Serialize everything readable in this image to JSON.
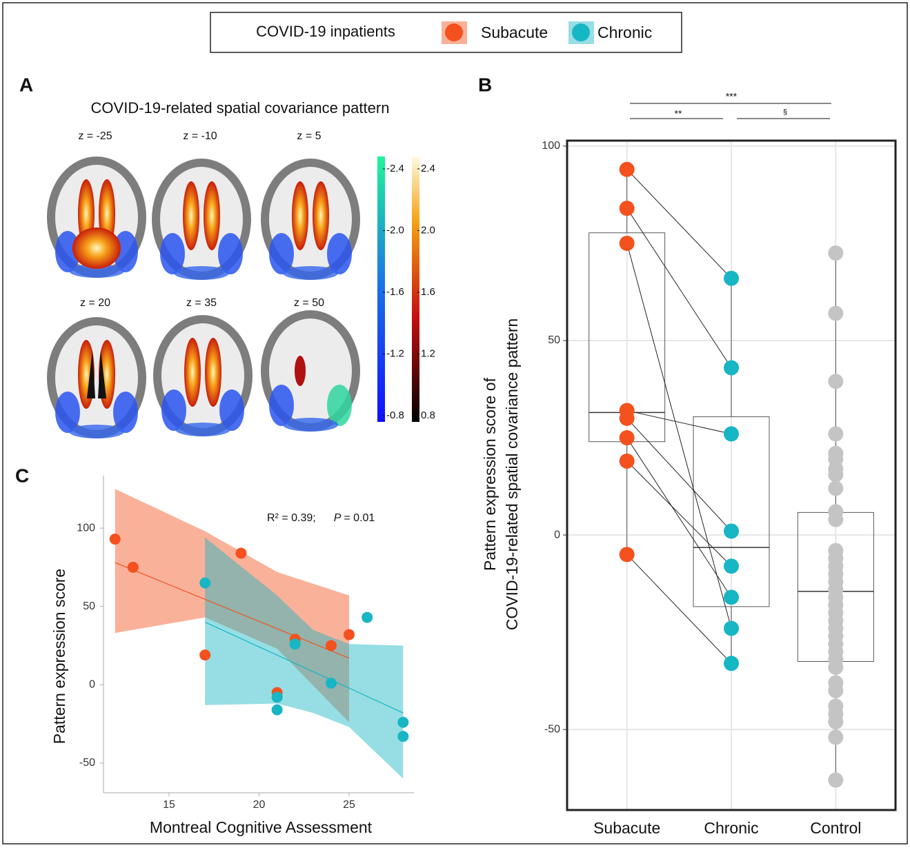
{
  "legend": {
    "title": "COVID-19 inpatients",
    "entries": [
      {
        "name": "Subacute",
        "color": "#f4511e"
      },
      {
        "name": "Chronic",
        "color": "#17b6c4"
      }
    ]
  },
  "panel_a": {
    "label": "A",
    "title": "COVID-19-related spatial covariance pattern",
    "slices": [
      "z = -25",
      "z = -10",
      "z = 5",
      "z = 20",
      "z = 35",
      "z = 50"
    ],
    "colorbar_negative": {
      "lim": [
        -0.76,
        -2.48
      ],
      "ticks": [
        -2.4,
        {
          "value": -2,
          "label": "-2.0"
        },
        -1.6,
        -1.2,
        -0.8
      ]
    },
    "colorbar_positive": {
      "lim": [
        0.76,
        2.48
      ],
      "ticks": [
        2.4,
        {
          "value": 2,
          "label": "2.0"
        },
        1.6,
        1.2,
        0.8
      ]
    }
  },
  "chart_data": [
    {
      "type": "scatter",
      "label": "C",
      "xlabel": "Montreal Cognitive Assessment",
      "ylabel": "Pattern expression score",
      "xlim": [
        11.36,
        28.6
      ],
      "ylim": [
        -69,
        133.5
      ],
      "xticks": [
        15,
        20,
        25
      ],
      "yticks": [
        -50,
        0,
        50,
        100
      ],
      "annotation": [
        "R² = 0.39;",
        "P",
        "= 0.01"
      ],
      "series": [
        {
          "color": "#f4511e",
          "x": [
            12,
            13,
            19,
            17,
            22,
            24,
            25,
            21
          ],
          "values": [
            93,
            75,
            84,
            19,
            29,
            25,
            32,
            -5
          ],
          "fit": {
            "x": [
              12,
              25
            ],
            "values": [
              78,
              17
            ]
          },
          "band": {
            "x": [
              12,
              17,
              21,
              25
            ],
            "upper": [
              125,
              98,
              72,
              57
            ],
            "lower": [
              33,
              43,
              23,
              -24
            ]
          }
        },
        {
          "color": "#17b6c4",
          "x": [
            17,
            22,
            24,
            21,
            21,
            26,
            28,
            28
          ],
          "values": [
            65,
            26,
            1,
            -8,
            -16,
            43,
            -24,
            -33
          ],
          "fit": {
            "x": [
              17,
              28
            ],
            "values": [
              40,
              -18
            ]
          },
          "band": {
            "x": [
              17,
              21,
              23,
              25,
              28
            ],
            "upper": [
              94,
              57,
              35,
              26,
              25
            ],
            "lower": [
              -13,
              -12,
              -18,
              -27,
              -60
            ]
          }
        }
      ]
    },
    {
      "type": "box",
      "label": "B",
      "ylabel": [
        "Pattern expression score of",
        "COVID-19-related spatial covariance pattern"
      ],
      "categories": [
        "Subacute",
        "Chronic",
        "Control"
      ],
      "ylim": [
        -70.7,
        101.4
      ],
      "yticks": [
        -50,
        0,
        50,
        100
      ],
      "grid": true,
      "significance": [
        "***",
        "**",
        "§"
      ],
      "series": [
        {
          "color": "#f4511e",
          "values": [
            94,
            84,
            75,
            32,
            30,
            25,
            19,
            -5
          ],
          "box": {
            "low": -5,
            "q1": 24,
            "median": 31.5,
            "q3": 77.7,
            "high": 94
          }
        },
        {
          "color": "#17b6c4",
          "values": [
            66,
            43,
            -24,
            26,
            1,
            -16,
            -8,
            -33
          ],
          "box": {
            "low": -33,
            "q1": -18.4,
            "median": -3.2,
            "q3": 30.4,
            "high": 66
          }
        },
        {
          "color": "#c4c4c4",
          "values": [
            72.5,
            57,
            39.5,
            26,
            21,
            19.5,
            17,
            15.5,
            12,
            6,
            4,
            -4,
            -6,
            -8,
            -10,
            -12,
            -14,
            -16,
            -18,
            -20,
            -22,
            -24,
            -26,
            -28,
            -30,
            -32,
            -34,
            -38,
            -40,
            -44,
            -46,
            -48,
            -52,
            -63
          ],
          "box": {
            "low": -63,
            "q1": -32.5,
            "median": -14.5,
            "q3": 5.8,
            "high": 72.5
          }
        }
      ]
    }
  ]
}
